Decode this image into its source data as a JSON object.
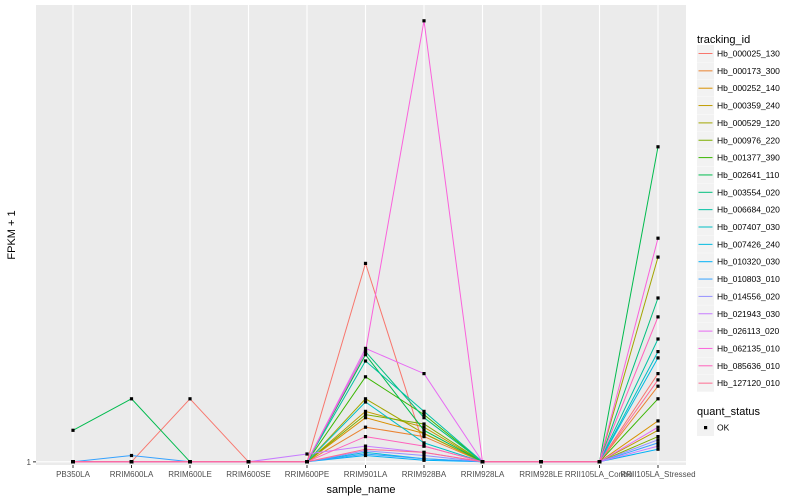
{
  "chart_data": {
    "type": "line",
    "xlabel": "sample_name",
    "ylabel": "FPKM + 1",
    "y_tick_labels": [
      "1"
    ],
    "ylim": [
      0.9,
      15.5
    ],
    "categories": [
      "PB350LA",
      "RRIM600LA",
      "RRIM600LE",
      "RRIM600SE",
      "RRIM600PE",
      "RRIM901LA",
      "RRIM928BA",
      "RRIM928LA",
      "RRIM928LE",
      "RRII105LA_Control",
      "RRII105LA_Stressed"
    ],
    "legend_position": "right",
    "grid": true,
    "color_legend_title": "tracking_id",
    "shape_legend_title": "quant_status",
    "shape_legend_items": [
      "OK"
    ],
    "series": [
      {
        "name": "Hb_000025_130",
        "color": "#F8766D",
        "values": [
          1,
          1,
          3.0,
          1,
          1,
          7.3,
          1.5,
          1,
          1,
          1,
          3.8
        ]
      },
      {
        "name": "Hb_000173_300",
        "color": "#EA8331",
        "values": [
          1,
          1,
          1,
          1,
          1,
          2.1,
          1.8,
          1,
          1,
          1,
          3.4
        ]
      },
      {
        "name": "Hb_000252_140",
        "color": "#D89000",
        "values": [
          1,
          1,
          1,
          1,
          1,
          2.4,
          1.9,
          1,
          1,
          1,
          2.3
        ]
      },
      {
        "name": "Hb_000359_240",
        "color": "#C09B00",
        "values": [
          1,
          1,
          1,
          1,
          1,
          2.6,
          2.1,
          1,
          1,
          1,
          2.0
        ]
      },
      {
        "name": "Hb_000529_120",
        "color": "#A3A500",
        "values": [
          1,
          1,
          1,
          1,
          1,
          3.0,
          1.9,
          1,
          1,
          1,
          7.5
        ]
      },
      {
        "name": "Hb_000976_220",
        "color": "#7CAE00",
        "values": [
          1,
          1,
          1,
          1,
          1,
          2.5,
          2.2,
          1,
          1,
          1,
          1.8
        ]
      },
      {
        "name": "Hb_001377_390",
        "color": "#39B600",
        "values": [
          1,
          1,
          1,
          1,
          1,
          3.7,
          2.5,
          1,
          1,
          1,
          3.0
        ]
      },
      {
        "name": "Hb_002641_110",
        "color": "#00BB4E",
        "values": [
          2.0,
          3.0,
          1,
          1,
          1,
          4.4,
          2.0,
          1,
          1,
          1,
          11.0
        ]
      },
      {
        "name": "Hb_003554_020",
        "color": "#00BF7D",
        "values": [
          1,
          1,
          1,
          1,
          1,
          4.5,
          2.4,
          1,
          1,
          1,
          6.2
        ]
      },
      {
        "name": "Hb_006684_020",
        "color": "#00C1A3",
        "values": [
          1,
          1,
          1,
          1,
          1,
          4.2,
          2.6,
          1,
          1,
          1,
          4.9
        ]
      },
      {
        "name": "Hb_007407_030",
        "color": "#00BFC4",
        "values": [
          1,
          1,
          1,
          1,
          1,
          2.9,
          1.6,
          1,
          1,
          1,
          4.5
        ]
      },
      {
        "name": "Hb_007426_240",
        "color": "#00BAE0",
        "values": [
          1,
          1,
          1,
          1,
          1,
          1.3,
          1.1,
          1,
          1,
          1,
          4.3
        ]
      },
      {
        "name": "Hb_010320_030",
        "color": "#00B0F6",
        "values": [
          1,
          1,
          1,
          1,
          1,
          1.2,
          1.05,
          1,
          1,
          1,
          1.4
        ]
      },
      {
        "name": "Hb_010803_010",
        "color": "#35A2FF",
        "values": [
          1,
          1.2,
          1,
          1,
          1,
          1.25,
          1.1,
          1,
          1,
          1,
          1.6
        ]
      },
      {
        "name": "Hb_014556_020",
        "color": "#9590FF",
        "values": [
          1,
          1,
          1,
          1,
          1,
          1.35,
          1.2,
          1,
          1,
          1,
          1.7
        ]
      },
      {
        "name": "Hb_021943_030",
        "color": "#C77CFF",
        "values": [
          1,
          1,
          1,
          1,
          1.25,
          1.5,
          1.3,
          1,
          1,
          1,
          1.5
        ]
      },
      {
        "name": "Hb_026113_020",
        "color": "#E76BF3",
        "values": [
          1,
          1,
          1,
          1,
          1,
          4.6,
          3.8,
          1,
          1,
          1,
          2.1
        ]
      },
      {
        "name": "Hb_062135_010",
        "color": "#FA62DB",
        "values": [
          1,
          1,
          1,
          1,
          1,
          4.5,
          15.0,
          1,
          1,
          1,
          8.1
        ]
      },
      {
        "name": "Hb_085636_010",
        "color": "#FF62BC",
        "values": [
          1,
          1,
          1,
          1,
          1,
          1.8,
          1.5,
          1,
          1,
          1,
          5.6
        ]
      },
      {
        "name": "Hb_127120_010",
        "color": "#FF6C91",
        "values": [
          1,
          1,
          1,
          1,
          1,
          1.4,
          1.3,
          1,
          1,
          1,
          3.6
        ]
      }
    ]
  }
}
